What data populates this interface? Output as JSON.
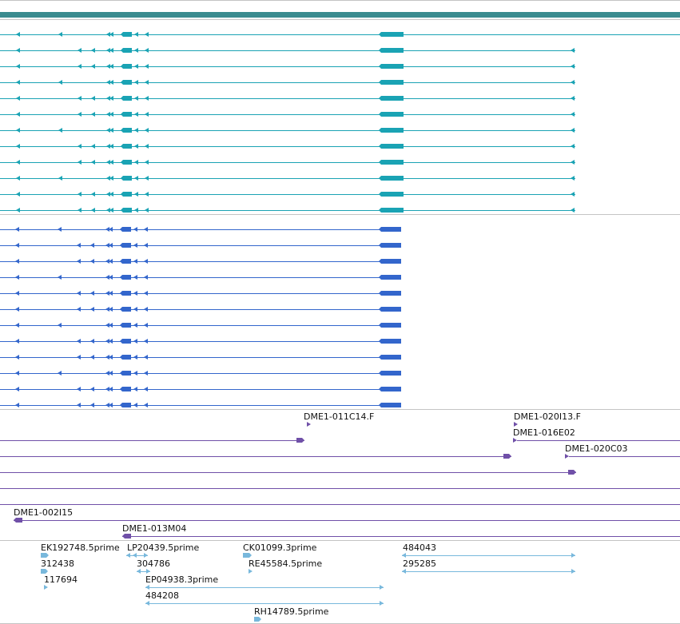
{
  "colors": {
    "track_header": "#3a8b8f",
    "separator": "#c4c4c4",
    "gene_teal": "#1aa3b4",
    "gene_blue": "#3366cc",
    "clone_purple": "#7050a8",
    "est_lightblue": "#78b8dc"
  },
  "annotations": {
    "clone_labels": [
      "DME1-011C14.F",
      "DME1-020I13.F",
      "DME1-016E02",
      "DME1-020C03",
      "DME1-002I15",
      "DME1-013M04"
    ],
    "est_labels": [
      "EK192748.5prime",
      "LP20439.5prime",
      "CK01099.3prime",
      "484043",
      "312438",
      "304786",
      "RE45584.5prime",
      "295285",
      "117694",
      "EP04938.3prime",
      "484208",
      "RH14789.5prime"
    ]
  }
}
